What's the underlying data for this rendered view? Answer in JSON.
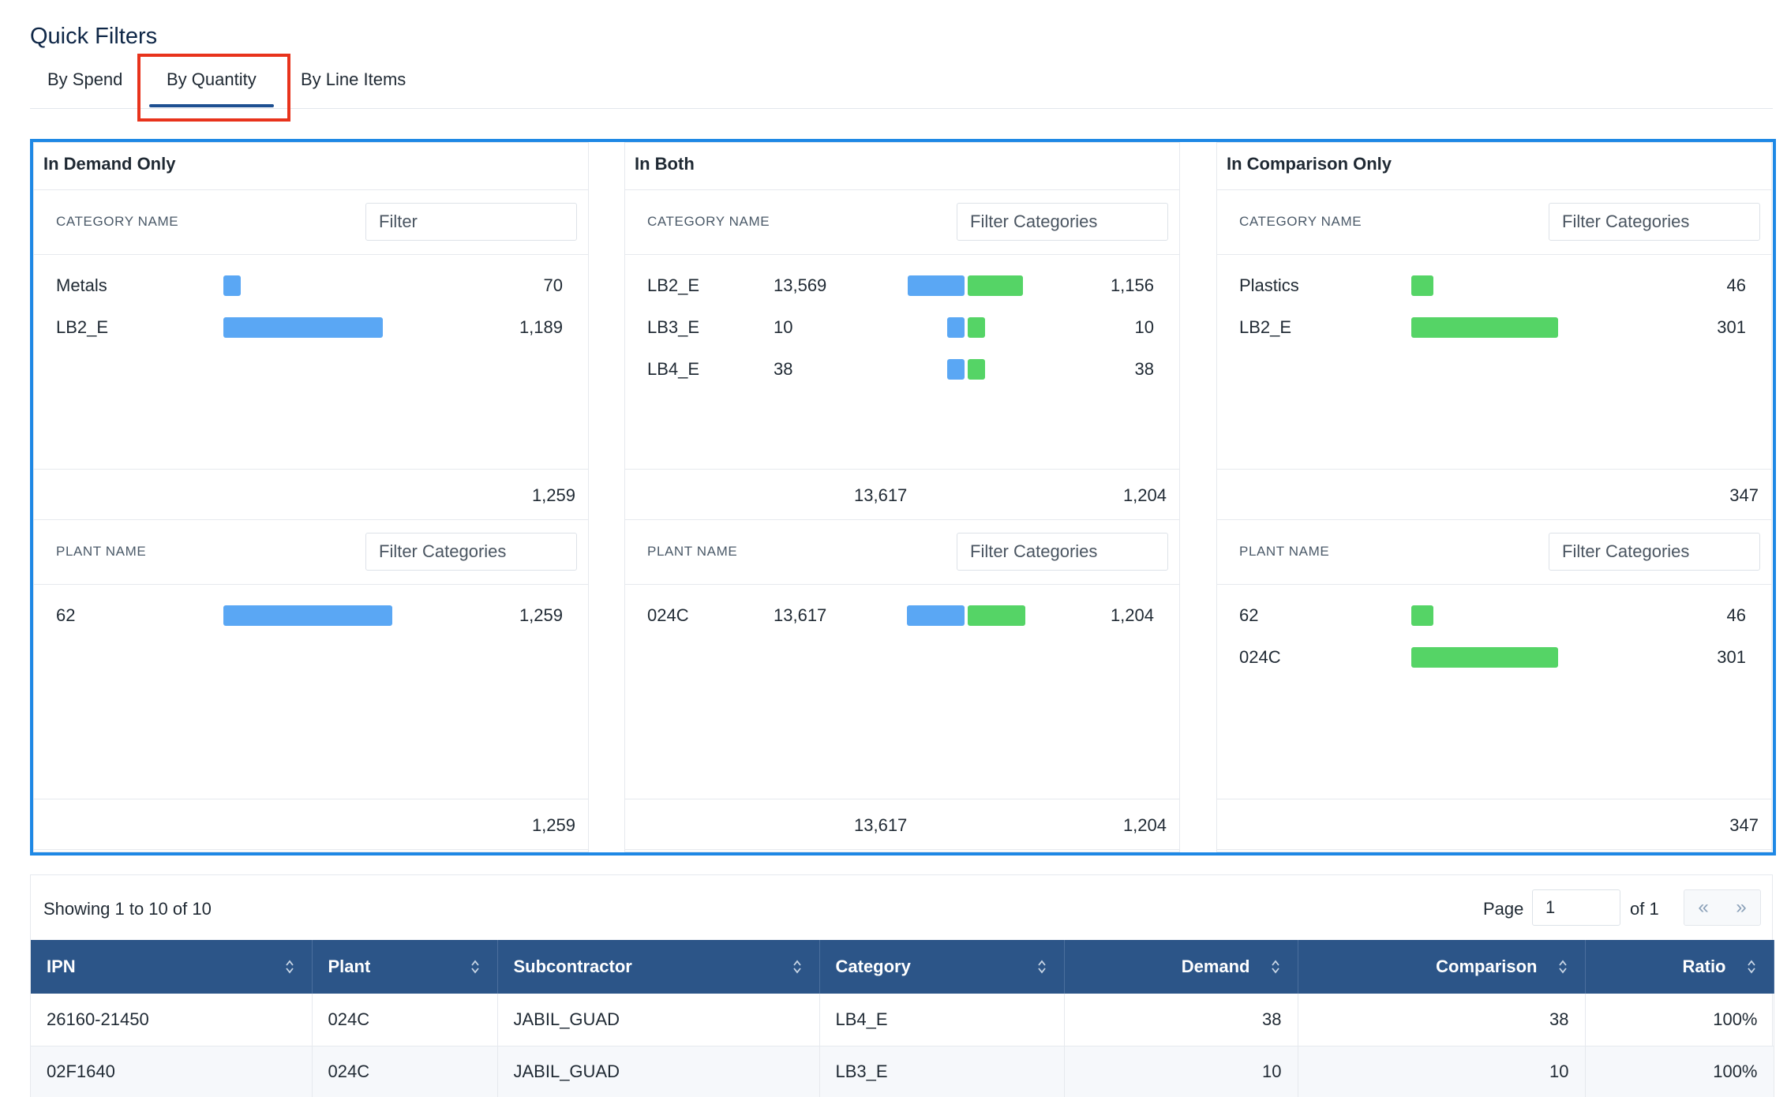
{
  "page_title": "Quick Filters",
  "tabs": [
    {
      "label": "By Spend"
    },
    {
      "label": "By Quantity",
      "active": true
    },
    {
      "label": "By Line Items"
    }
  ],
  "colors": {
    "demand": "#5aa7f4",
    "comparison": "#55d466",
    "header": "#2c5588",
    "highlight": "#e8331c",
    "panel_outline": "#1e88e5"
  },
  "panels": {
    "demand_only": {
      "title": "In Demand Only",
      "category_label": "CATEGORY NAME",
      "category_filter_placeholder": "Filter",
      "category_rows": [
        {
          "name": "Metals",
          "value": "70",
          "fraction": 0.059
        },
        {
          "name": "LB2_E",
          "value": "1,189",
          "fraction": 0.945
        }
      ],
      "category_total": "1,259",
      "plant_label": "PLANT NAME",
      "plant_filter_placeholder": "Filter Categories",
      "plant_rows": [
        {
          "name": "62",
          "value": "1,259",
          "fraction": 1.0
        }
      ],
      "plant_total": "1,259"
    },
    "both": {
      "title": "In Both",
      "category_label": "CATEGORY NAME",
      "category_filter_placeholder": "Filter Categories",
      "category_rows": [
        {
          "name": "LB2_E",
          "demand": "13,569",
          "comparison": "1,156",
          "demand_fraction": 0.99,
          "comparison_fraction": 0.96
        },
        {
          "name": "LB3_E",
          "demand": "10",
          "comparison": "10",
          "demand_fraction": 0.15,
          "comparison_fraction": 0.21
        },
        {
          "name": "LB4_E",
          "demand": "38",
          "comparison": "38",
          "demand_fraction": 0.15,
          "comparison_fraction": 0.21
        }
      ],
      "category_total_demand": "13,617",
      "category_total_comparison": "1,204",
      "plant_label": "PLANT NAME",
      "plant_filter_placeholder": "Filter Categories",
      "plant_rows": [
        {
          "name": "024C",
          "demand": "13,617",
          "comparison": "1,204",
          "demand_fraction": 1.0,
          "comparison_fraction": 1.0
        }
      ],
      "plant_total_demand": "13,617",
      "plant_total_comparison": "1,204"
    },
    "comparison_only": {
      "title": "In Comparison Only",
      "category_label": "CATEGORY NAME",
      "category_filter_placeholder": "Filter Categories",
      "category_rows": [
        {
          "name": "Plastics",
          "value": "46",
          "fraction": 0.153
        },
        {
          "name": "LB2_E",
          "value": "301",
          "fraction": 1.0
        }
      ],
      "category_total": "347",
      "plant_label": "PLANT NAME",
      "plant_filter_placeholder": "Filter Categories",
      "plant_rows": [
        {
          "name": "62",
          "value": "46",
          "fraction": 0.153
        },
        {
          "name": "024C",
          "value": "301",
          "fraction": 1.0
        }
      ],
      "plant_total": "347"
    }
  },
  "table": {
    "showing": "Showing 1 to 10 of 10",
    "page_label": "Page",
    "page_value": "1",
    "of_label": "of 1",
    "first_icon": "«",
    "last_icon": "»",
    "columns": [
      "IPN",
      "Plant",
      "Subcontractor",
      "Category",
      "Demand",
      "Comparison",
      "Ratio"
    ],
    "rows": [
      [
        "26160-21450",
        "024C",
        "JABIL_GUAD",
        "LB4_E",
        "38",
        "38",
        "100%"
      ],
      [
        "02F1640",
        "024C",
        "JABIL_GUAD",
        "LB3_E",
        "10",
        "10",
        "100%"
      ]
    ]
  }
}
